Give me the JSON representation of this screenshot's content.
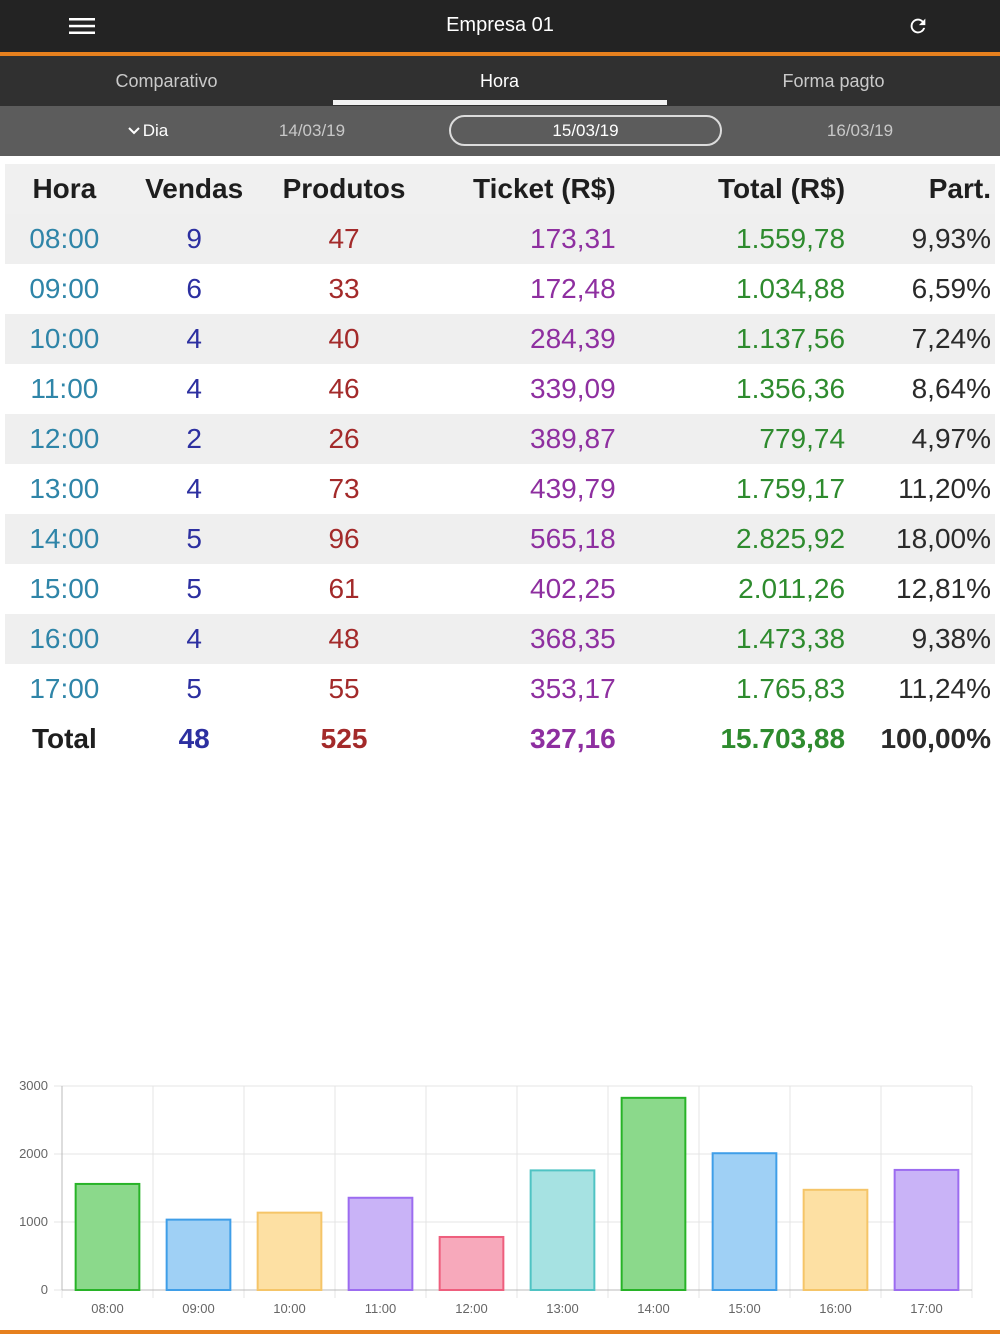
{
  "header": {
    "title": "Empresa 01",
    "menu_icon": "menu-icon",
    "refresh_icon": "refresh-icon"
  },
  "tabs": [
    {
      "label": "Comparativo",
      "active": false
    },
    {
      "label": "Hora",
      "active": true
    },
    {
      "label": "Forma pagto",
      "active": false
    }
  ],
  "datebar": {
    "period_label": "Dia",
    "prev_date": "14/03/19",
    "current_date": "15/03/19",
    "next_date": "16/03/19"
  },
  "table": {
    "columns": [
      "Hora",
      "Vendas",
      "Produtos",
      "Ticket (R$)",
      "Total (R$)",
      "Part."
    ],
    "rows": [
      [
        "08:00",
        "9",
        "47",
        "173,31",
        "1.559,78",
        "9,93%"
      ],
      [
        "09:00",
        "6",
        "33",
        "172,48",
        "1.034,88",
        "6,59%"
      ],
      [
        "10:00",
        "4",
        "40",
        "284,39",
        "1.137,56",
        "7,24%"
      ],
      [
        "11:00",
        "4",
        "46",
        "339,09",
        "1.356,36",
        "8,64%"
      ],
      [
        "12:00",
        "2",
        "26",
        "389,87",
        "779,74",
        "4,97%"
      ],
      [
        "13:00",
        "4",
        "73",
        "439,79",
        "1.759,17",
        "11,20%"
      ],
      [
        "14:00",
        "5",
        "96",
        "565,18",
        "2.825,92",
        "18,00%"
      ],
      [
        "15:00",
        "5",
        "61",
        "402,25",
        "2.011,26",
        "12,81%"
      ],
      [
        "16:00",
        "4",
        "48",
        "368,35",
        "1.473,38",
        "9,38%"
      ],
      [
        "17:00",
        "5",
        "55",
        "353,17",
        "1.765,83",
        "11,24%"
      ]
    ],
    "total": [
      "Total",
      "48",
      "525",
      "327,16",
      "15.703,88",
      "100,00%"
    ]
  },
  "colors": {
    "accent": "#e6801e",
    "hora": "#2f85a8",
    "vendas": "#2c2fa0",
    "produtos": "#a32a2a",
    "ticket": "#8e2fa0",
    "total": "#2e8b2e"
  },
  "chart_data": {
    "type": "bar",
    "categories": [
      "08:00",
      "09:00",
      "10:00",
      "11:00",
      "12:00",
      "13:00",
      "14:00",
      "15:00",
      "16:00",
      "17:00"
    ],
    "values": [
      1559.78,
      1034.88,
      1137.56,
      1356.36,
      779.74,
      1759.17,
      2825.92,
      2011.26,
      1473.38,
      1765.83
    ],
    "ylim": [
      0,
      3000
    ],
    "yticks": [
      0,
      1000,
      2000,
      3000
    ],
    "grid": true,
    "bar_colors": [
      {
        "fill": "#8bd98b",
        "stroke": "#27b327"
      },
      {
        "fill": "#9fd0f5",
        "stroke": "#3f9ee8"
      },
      {
        "fill": "#fde0a3",
        "stroke": "#f5c568"
      },
      {
        "fill": "#c9b3f7",
        "stroke": "#9c6cf0"
      },
      {
        "fill": "#f7a9bb",
        "stroke": "#ee5e7d"
      },
      {
        "fill": "#a6e2e2",
        "stroke": "#4fc3c3"
      },
      {
        "fill": "#8bd98b",
        "stroke": "#27b327"
      },
      {
        "fill": "#9fd0f5",
        "stroke": "#3f9ee8"
      },
      {
        "fill": "#fde0a3",
        "stroke": "#f5c568"
      },
      {
        "fill": "#c9b3f7",
        "stroke": "#9c6cf0"
      }
    ]
  }
}
